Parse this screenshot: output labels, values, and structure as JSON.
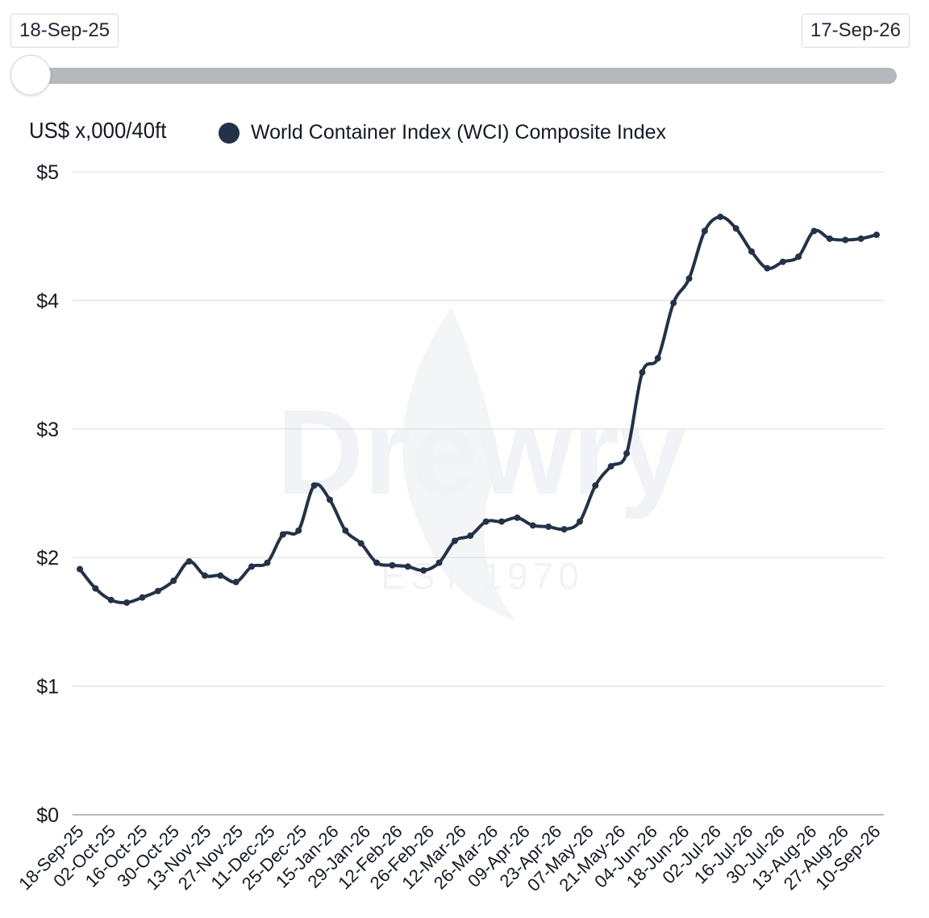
{
  "range": {
    "start": "18-Sep-25",
    "end": "17-Sep-26",
    "slider_position": 0
  },
  "chart_data": {
    "type": "line",
    "title": "",
    "ylabel": "US$ x,000/40ft",
    "xlabel": "",
    "ylim": [
      0,
      5
    ],
    "y_ticks": [
      "$0",
      "$1",
      "$2",
      "$3",
      "$4",
      "$5"
    ],
    "x_tick_labels": [
      "18-Sep-25",
      "02-Oct-25",
      "16-Oct-25",
      "30-Oct-25",
      "13-Nov-25",
      "27-Nov-25",
      "11-Dec-25",
      "25-Dec-25",
      "15-Jan-26",
      "29-Jan-26",
      "12-Feb-26",
      "26-Feb-26",
      "12-Mar-26",
      "26-Mar-26",
      "09-Apr-26",
      "23-Apr-26",
      "07-May-26",
      "21-May-26",
      "04-Jun-26",
      "18-Jun-26",
      "02-Jul-26",
      "16-Jul-26",
      "30-Jul-26",
      "13-Aug-26",
      "27-Aug-26",
      "10-Sep-26"
    ],
    "grid": true,
    "legend_position": "top-left",
    "series": [
      {
        "name": "World Container Index (WCI) Composite Index",
        "color": "#243247",
        "values": [
          1.91,
          1.76,
          1.67,
          1.65,
          1.69,
          1.74,
          1.82,
          1.97,
          1.86,
          1.86,
          1.81,
          1.93,
          1.96,
          2.18,
          2.21,
          2.56,
          2.45,
          2.21,
          2.11,
          1.96,
          1.94,
          1.93,
          1.9,
          1.96,
          2.13,
          2.17,
          2.28,
          2.28,
          2.31,
          2.25,
          2.24,
          2.22,
          2.28,
          2.56,
          2.71,
          2.81,
          3.44,
          3.55,
          3.98,
          4.17,
          4.54,
          4.65,
          4.56,
          4.38,
          4.25,
          4.3,
          4.34,
          4.54,
          4.48,
          4.47,
          4.48,
          4.51
        ]
      }
    ]
  },
  "watermark": {
    "brand": "Drewry",
    "tagline": "EST 1970"
  }
}
